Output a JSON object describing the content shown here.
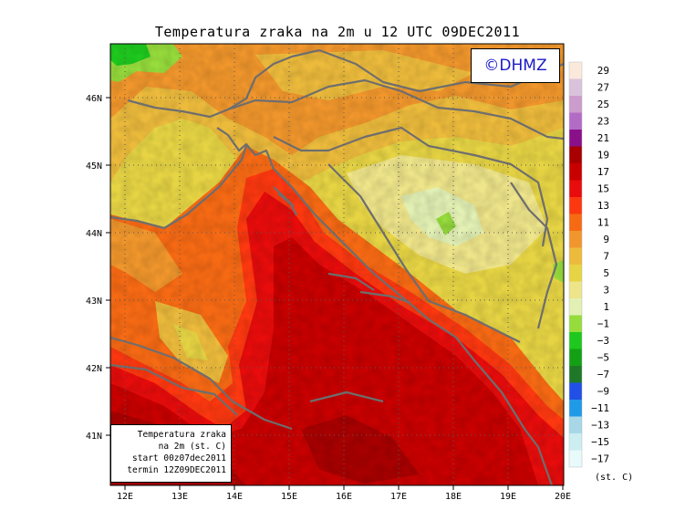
{
  "title": "Temperatura zraka na 2m u 12 UTC 09DEC2011",
  "logo": "©DHMZ",
  "map": {
    "lon_range": [
      11.7,
      20.0
    ],
    "lat_range": [
      40.25,
      46.75
    ],
    "lon_ticks": [
      "12E",
      "13E",
      "14E",
      "15E",
      "16E",
      "17E",
      "18E",
      "19E",
      "20E"
    ],
    "lat_ticks": [
      "41N",
      "42N",
      "43N",
      "44N",
      "45N",
      "46N"
    ]
  },
  "colorbar": {
    "unit": "(st. C)",
    "labels": [
      "29",
      "27",
      "25",
      "23",
      "21",
      "19",
      "17",
      "15",
      "13",
      "11",
      "9",
      "7",
      "5",
      "3",
      "1",
      "−1",
      "−3",
      "−5",
      "−7",
      "−9",
      "−11",
      "−13",
      "−15",
      "−17"
    ],
    "colors": [
      "#fbe9dc",
      "#d9c3dc",
      "#cc9ccc",
      "#b26cc6",
      "#8a108a",
      "#a80000",
      "#c80000",
      "#e80c0c",
      "#fc3810",
      "#f76a14",
      "#f0962c",
      "#ecbb3c",
      "#e6d444",
      "#eee48a",
      "#e2f0b4",
      "#96dc3c",
      "#1ec81e",
      "#14a014",
      "#1e7828",
      "#2050e6",
      "#1e9ae6",
      "#a8d8e8",
      "#cceef0",
      "#e8fafa"
    ]
  },
  "info": {
    "line1": "Temperatura zraka",
    "line2": "na 2m (st. C)",
    "line3": "start 00z07dec2011",
    "line4": "termin 12Z09DEC2011"
  }
}
